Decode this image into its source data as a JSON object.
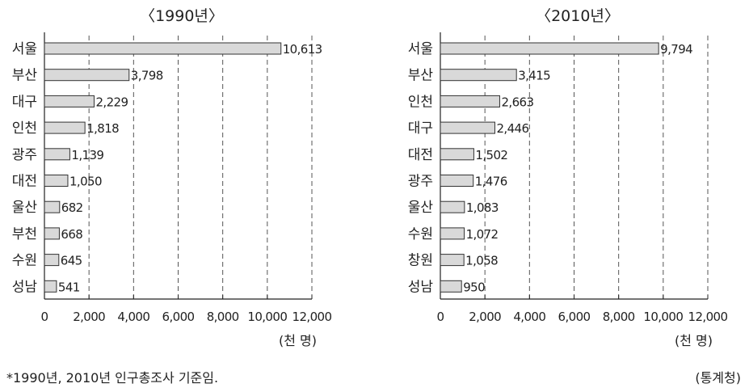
{
  "chart_data": [
    {
      "type": "bar",
      "orientation": "horizontal",
      "title": "〈1990년〉",
      "categories": [
        "서울",
        "부산",
        "대구",
        "인천",
        "광주",
        "대전",
        "울산",
        "부천",
        "수원",
        "성남"
      ],
      "values": [
        10613,
        3798,
        2229,
        1818,
        1139,
        1050,
        682,
        668,
        645,
        541
      ],
      "value_labels": [
        "10,613",
        "3,798",
        "2,229",
        "1,818",
        "1,139",
        "1,050",
        "682",
        "668",
        "645",
        "541"
      ],
      "xlim": [
        0,
        12000
      ],
      "x_ticks": [
        0,
        2000,
        4000,
        6000,
        8000,
        10000,
        12000
      ],
      "x_tick_labels": [
        "0",
        "2,000",
        "4,000",
        "6,000",
        "8,000",
        "10,000",
        "12,000"
      ],
      "unit_label": "(천 명)",
      "grid": "vertical dashed"
    },
    {
      "type": "bar",
      "orientation": "horizontal",
      "title": "〈2010년〉",
      "categories": [
        "서울",
        "부산",
        "인천",
        "대구",
        "대전",
        "광주",
        "울산",
        "수원",
        "창원",
        "성남"
      ],
      "values": [
        9794,
        3415,
        2663,
        2446,
        1502,
        1476,
        1083,
        1072,
        1058,
        950
      ],
      "value_labels": [
        "9,794",
        "3,415",
        "2,663",
        "2,446",
        "1,502",
        "1,476",
        "1,083",
        "1,072",
        "1,058",
        "950"
      ],
      "xlim": [
        0,
        12000
      ],
      "x_ticks": [
        0,
        2000,
        4000,
        6000,
        8000,
        10000,
        12000
      ],
      "x_tick_labels": [
        "0",
        "2,000",
        "4,000",
        "6,000",
        "8,000",
        "10,000",
        "12,000"
      ],
      "unit_label": "(천 명)",
      "grid": "vertical dashed"
    }
  ],
  "footnote": "*1990년, 2010년 인구총조사 기준임.",
  "source": "(통계청)",
  "colors": {
    "bar_fill": "#d9d9d9",
    "bar_stroke": "#333333",
    "axis": "#222222",
    "grid": "#555555"
  }
}
